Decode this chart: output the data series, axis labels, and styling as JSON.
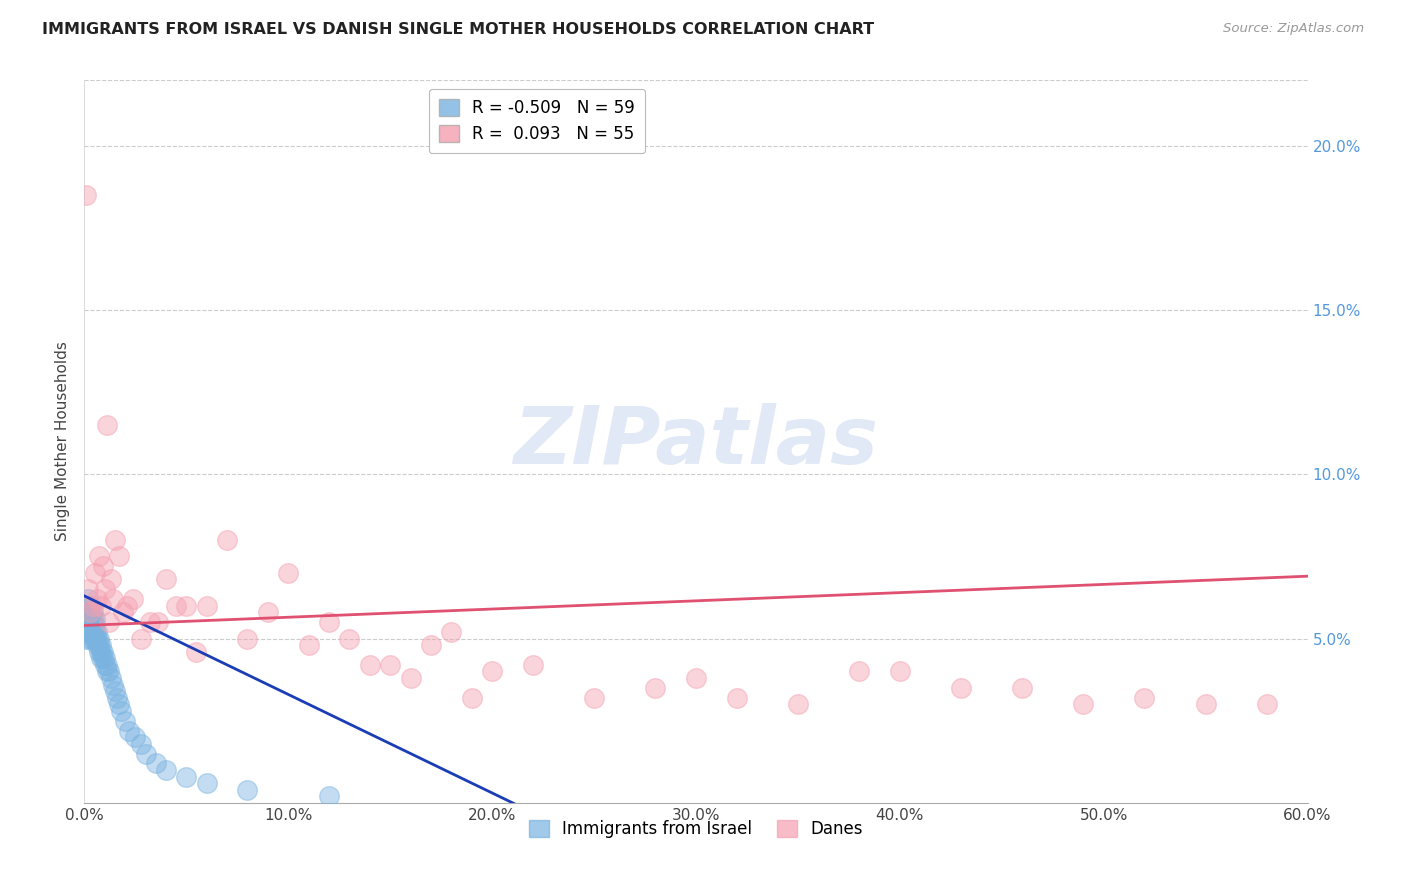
{
  "title": "IMMIGRANTS FROM ISRAEL VS DANISH SINGLE MOTHER HOUSEHOLDS CORRELATION CHART",
  "source": "Source: ZipAtlas.com",
  "ylabel": "Single Mother Households",
  "legend_blue_r": "R = -0.509",
  "legend_blue_n": "N = 59",
  "legend_pink_r": "R =  0.093",
  "legend_pink_n": "N = 55",
  "legend_blue_label": "Immigrants from Israel",
  "legend_pink_label": "Danes",
  "xlim": [
    0.0,
    0.6
  ],
  "ylim": [
    0.0,
    0.22
  ],
  "xticks": [
    0.0,
    0.1,
    0.2,
    0.3,
    0.4,
    0.5,
    0.6
  ],
  "xticklabels": [
    "0.0%",
    "10.0%",
    "20.0%",
    "30.0%",
    "40.0%",
    "50.0%",
    "60.0%"
  ],
  "yticks_right": [
    0.05,
    0.1,
    0.15,
    0.2
  ],
  "ytick_right_labels": [
    "5.0%",
    "10.0%",
    "15.0%",
    "20.0%"
  ],
  "blue_color": "#7ab3e0",
  "pink_color": "#f4a0b0",
  "blue_line_color": "#1a3db5",
  "pink_line_color": "#e05070",
  "watermark": "ZIPatlas",
  "background_color": "#ffffff",
  "grid_color": "#cccccc",
  "blue_x": [
    0.001,
    0.001,
    0.001,
    0.001,
    0.001,
    0.002,
    0.002,
    0.002,
    0.002,
    0.002,
    0.002,
    0.003,
    0.003,
    0.003,
    0.003,
    0.003,
    0.003,
    0.004,
    0.004,
    0.004,
    0.004,
    0.004,
    0.005,
    0.005,
    0.005,
    0.005,
    0.006,
    0.006,
    0.006,
    0.007,
    0.007,
    0.007,
    0.008,
    0.008,
    0.008,
    0.009,
    0.009,
    0.01,
    0.01,
    0.011,
    0.011,
    0.012,
    0.013,
    0.014,
    0.015,
    0.016,
    0.017,
    0.018,
    0.02,
    0.022,
    0.025,
    0.028,
    0.03,
    0.035,
    0.04,
    0.05,
    0.06,
    0.08,
    0.12
  ],
  "blue_y": [
    0.058,
    0.056,
    0.054,
    0.052,
    0.05,
    0.062,
    0.06,
    0.058,
    0.056,
    0.054,
    0.052,
    0.06,
    0.058,
    0.056,
    0.054,
    0.052,
    0.05,
    0.058,
    0.056,
    0.054,
    0.052,
    0.05,
    0.056,
    0.054,
    0.052,
    0.05,
    0.052,
    0.05,
    0.048,
    0.05,
    0.048,
    0.046,
    0.048,
    0.046,
    0.044,
    0.046,
    0.044,
    0.044,
    0.042,
    0.042,
    0.04,
    0.04,
    0.038,
    0.036,
    0.034,
    0.032,
    0.03,
    0.028,
    0.025,
    0.022,
    0.02,
    0.018,
    0.015,
    0.012,
    0.01,
    0.008,
    0.006,
    0.004,
    0.002
  ],
  "blue_sizes": [
    400,
    350,
    300,
    280,
    260,
    380,
    360,
    340,
    320,
    300,
    280,
    360,
    340,
    320,
    300,
    280,
    260,
    340,
    320,
    300,
    280,
    260,
    320,
    300,
    280,
    260,
    300,
    280,
    260,
    280,
    260,
    240,
    260,
    240,
    220,
    240,
    220,
    220,
    200,
    200,
    190,
    180,
    170,
    160,
    150,
    140,
    130,
    120,
    110,
    100,
    90,
    85,
    80,
    75,
    70,
    65,
    60,
    55,
    50
  ],
  "pink_x": [
    0.001,
    0.002,
    0.003,
    0.004,
    0.005,
    0.006,
    0.007,
    0.008,
    0.009,
    0.01,
    0.011,
    0.012,
    0.013,
    0.014,
    0.015,
    0.017,
    0.019,
    0.021,
    0.024,
    0.028,
    0.032,
    0.036,
    0.04,
    0.045,
    0.05,
    0.055,
    0.06,
    0.07,
    0.08,
    0.09,
    0.1,
    0.11,
    0.12,
    0.13,
    0.14,
    0.15,
    0.16,
    0.17,
    0.18,
    0.19,
    0.2,
    0.22,
    0.25,
    0.28,
    0.3,
    0.32,
    0.35,
    0.38,
    0.4,
    0.43,
    0.46,
    0.49,
    0.52,
    0.55,
    0.58
  ],
  "pink_y": [
    0.185,
    0.065,
    0.058,
    0.06,
    0.07,
    0.062,
    0.075,
    0.06,
    0.072,
    0.065,
    0.115,
    0.055,
    0.068,
    0.062,
    0.08,
    0.075,
    0.058,
    0.06,
    0.062,
    0.05,
    0.055,
    0.055,
    0.068,
    0.06,
    0.06,
    0.046,
    0.06,
    0.08,
    0.05,
    0.058,
    0.07,
    0.048,
    0.055,
    0.05,
    0.042,
    0.042,
    0.038,
    0.048,
    0.052,
    0.032,
    0.04,
    0.042,
    0.032,
    0.035,
    0.038,
    0.032,
    0.03,
    0.04,
    0.04,
    0.035,
    0.035,
    0.03,
    0.032,
    0.03,
    0.03
  ]
}
